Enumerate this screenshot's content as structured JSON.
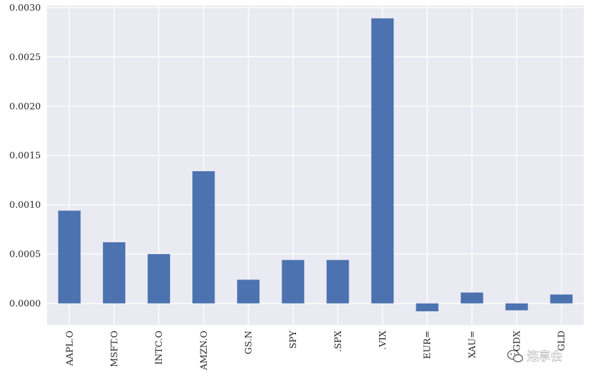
{
  "chart_data": {
    "type": "bar",
    "categories": [
      "AAPL.O",
      "MSFT.O",
      "INTC.O",
      "AMZN.O",
      "GS.N",
      "SPY",
      ".SPX",
      ".VIX",
      "EUR=",
      "XAU=",
      "GDX",
      "GLD"
    ],
    "values": [
      0.00094,
      0.00062,
      0.0005,
      0.00134,
      0.00024,
      0.00044,
      0.00044,
      0.00289,
      -8e-05,
      0.00011,
      -7e-05,
      9e-05
    ],
    "yticks": [
      "0.0000",
      "0.0005",
      "0.0010",
      "0.0015",
      "0.0020",
      "0.0025",
      "0.0030"
    ],
    "ytick_values": [
      0,
      0.0005,
      0.001,
      0.0015,
      0.002,
      0.0025,
      0.003
    ],
    "ylim": [
      -0.00022,
      0.00302
    ],
    "title": "",
    "xlabel": "",
    "ylabel": "",
    "grid": true,
    "legend": "none"
  },
  "colors": {
    "bar": "#4c72b0",
    "plot_background": "#eaeaf2",
    "grid": "#ffffff"
  },
  "watermark": {
    "icon": "wechat-icon",
    "text": "连享会"
  }
}
